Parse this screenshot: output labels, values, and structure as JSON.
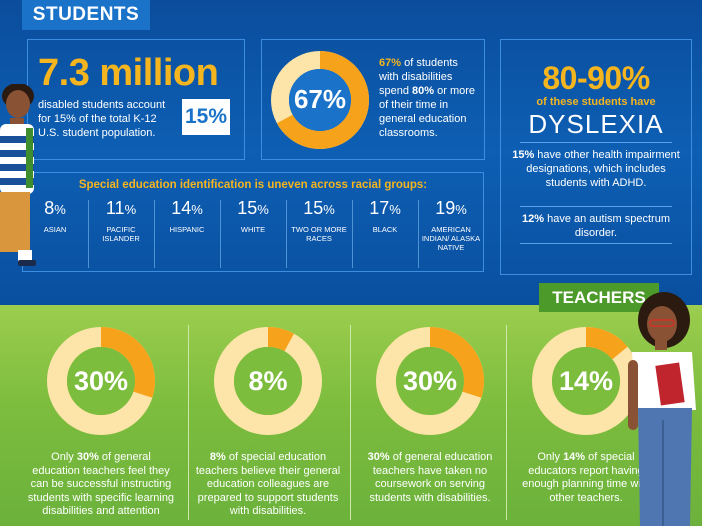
{
  "students_section": {
    "tab": "STUDENTS",
    "box1": {
      "headline": "7.3 million",
      "description": "disabled students account for 15% of the total K-12 U.S. student population.",
      "badge": "15%"
    },
    "box2": {
      "donut_label": "67%",
      "donut_value_percent": 67,
      "highlight": "67%",
      "text_a": " of students with disabilities spend ",
      "text_bold": "80%",
      "text_b": " or more of their time in general education classrooms."
    },
    "box3": {
      "headline": "80-90%",
      "sub": "of these students have",
      "dyslexia": "DYSLEXIA",
      "p1_bold": "15%",
      "p1": " have other health impairment designations, which includes students with ADHD.",
      "p2_bold": "12%",
      "p2": " have an autism spectrum disorder."
    },
    "race": {
      "title": "Special education identification is uneven across racial groups:",
      "groups": [
        {
          "pct": "8",
          "label": "ASIAN"
        },
        {
          "pct": "11",
          "label": "PACIFIC ISLANDER"
        },
        {
          "pct": "14",
          "label": "HISPANIC"
        },
        {
          "pct": "15",
          "label": "WHITE"
        },
        {
          "pct": "15",
          "label": "TWO OR MORE RACES"
        },
        {
          "pct": "17",
          "label": "BLACK"
        },
        {
          "pct": "19",
          "label": "AMERICAN INDIAN/ ALASKA NATIVE"
        }
      ],
      "pct_symbol": "%"
    }
  },
  "teachers_section": {
    "tab": "TEACHERS",
    "stats": [
      {
        "label": "30%",
        "value_percent": 30,
        "pre": "Only ",
        "bold": "30%",
        "post": " of general education teachers feel they can be successful instructing students with specific learning disabilities and attention"
      },
      {
        "label": "8%",
        "value_percent": 8,
        "pre": "",
        "bold": "8%",
        "post": " of special education teachers believe their general education colleagues are prepared to support students with disabilities."
      },
      {
        "label": "30%",
        "value_percent": 30,
        "pre": "",
        "bold": "30%",
        "post": " of general education teachers have taken no coursework on serving students with disabilities."
      },
      {
        "label": "14%",
        "value_percent": 14,
        "pre": "Only ",
        "bold": "14%",
        "post": " of special educators report having enough planning time with other teachers."
      }
    ]
  },
  "colors": {
    "blue": "#0d5fb4",
    "accent_orange": "#f7a21b",
    "donut_track": "#fde4a8",
    "green": "#7dbd3e",
    "yellow": "#f5b51e"
  },
  "illustrations": [
    "student-boy-illustration",
    "teacher-woman-illustration"
  ]
}
